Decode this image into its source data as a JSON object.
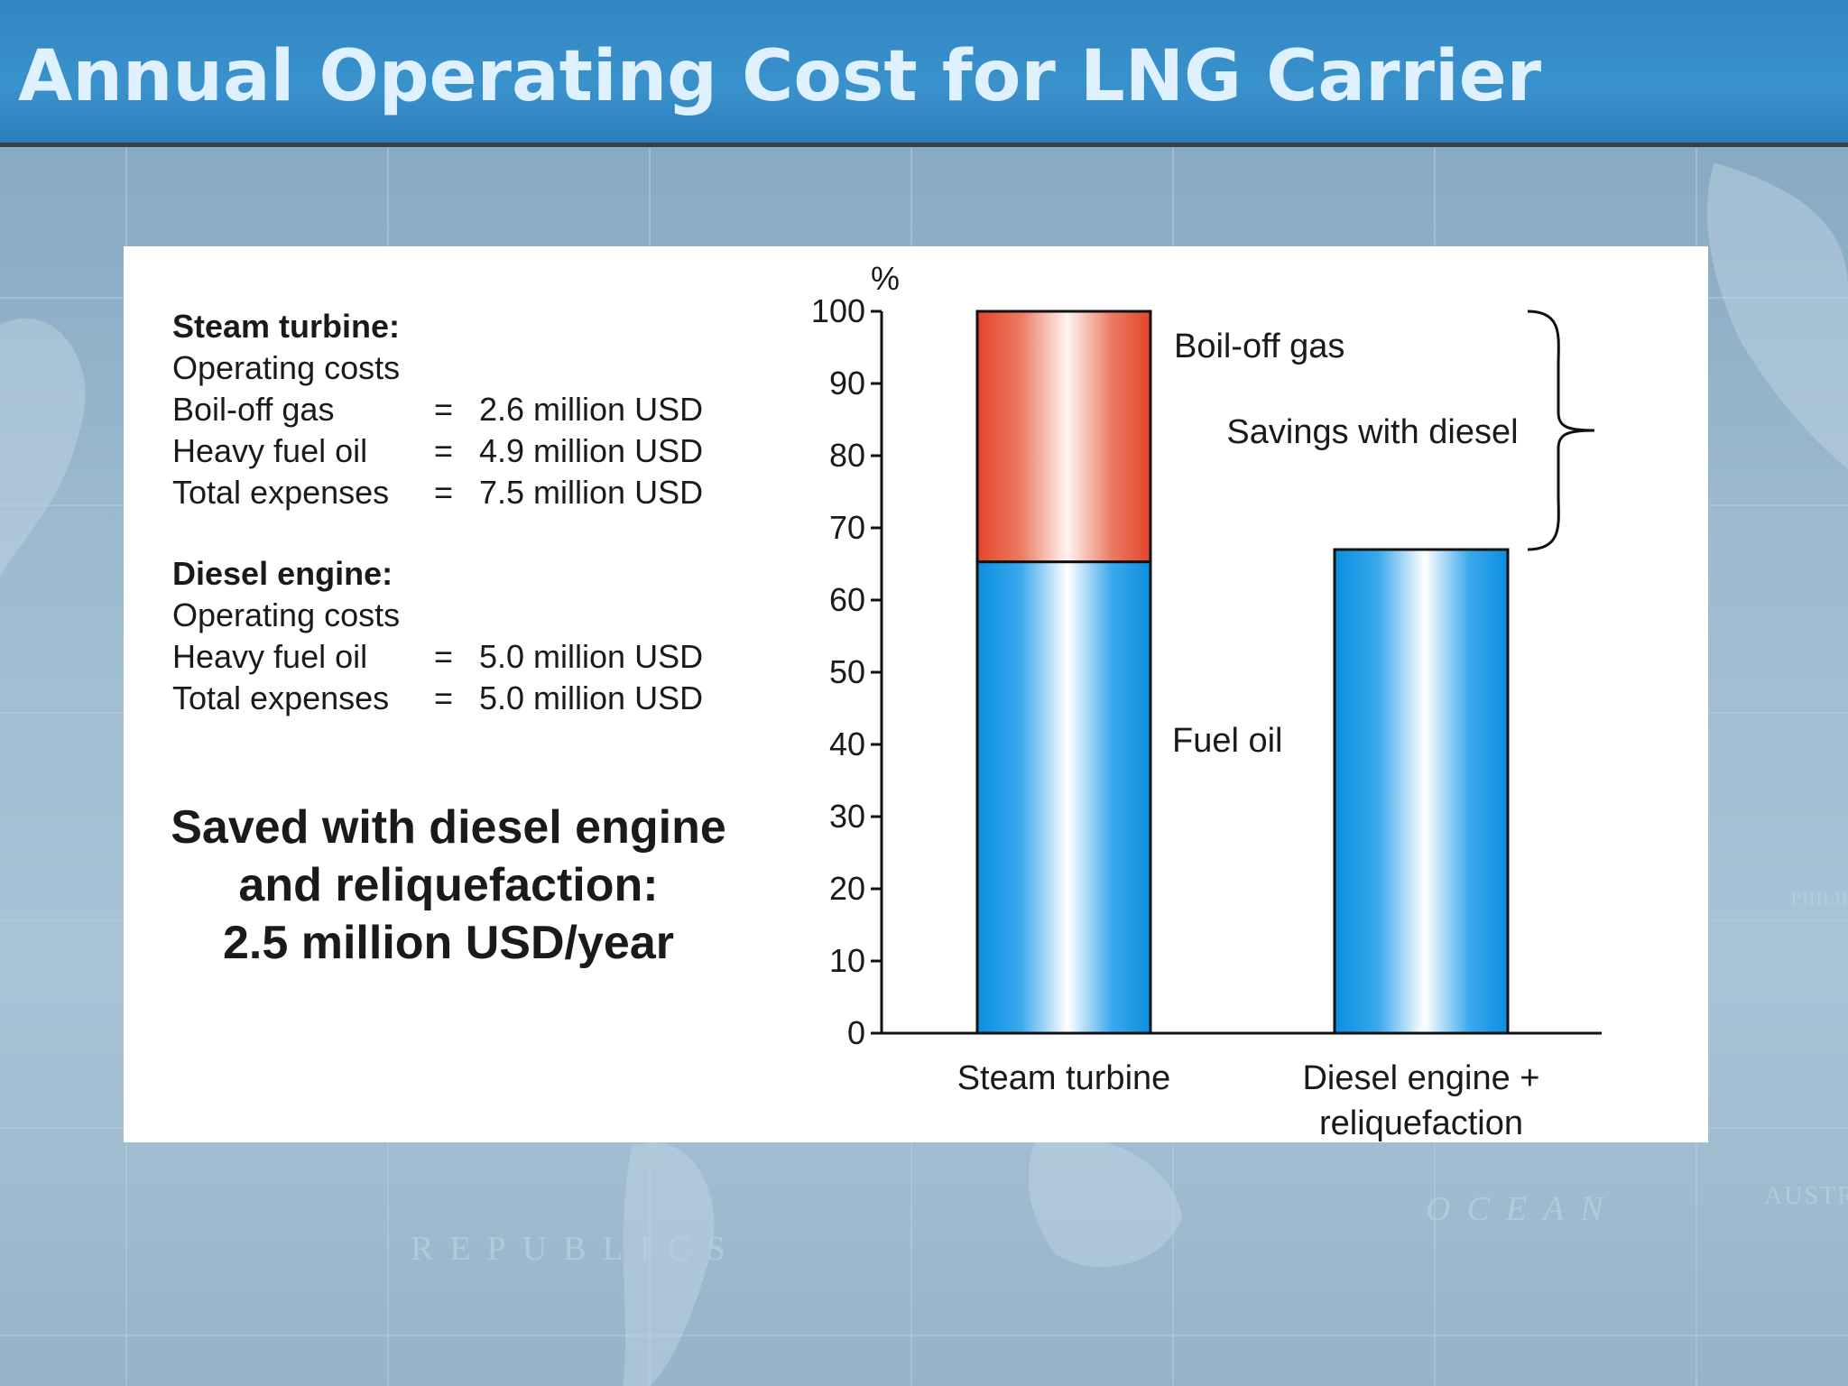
{
  "slide": {
    "title": "Annual Operating Cost for LNG Carrier",
    "map_words": [
      "REPUBLICS",
      "OCEAN",
      "AUSTR",
      "PHILIP"
    ]
  },
  "steam": {
    "heading": "Steam turbine:",
    "subheading": "Operating costs",
    "rows": [
      {
        "label": "Boil-off gas",
        "eq": "=",
        "value": "2.6 million USD"
      },
      {
        "label": "Heavy fuel oil",
        "eq": "=",
        "value": "4.9 million USD"
      },
      {
        "label": "Total expenses",
        "eq": "=",
        "value": "7.5 million USD"
      }
    ]
  },
  "diesel": {
    "heading": "Diesel engine:",
    "subheading": "Operating costs",
    "rows": [
      {
        "label": "Heavy fuel oil",
        "eq": "=",
        "value": "5.0 million USD"
      },
      {
        "label": "Total expenses",
        "eq": "=",
        "value": "5.0 million USD"
      }
    ]
  },
  "saved": {
    "line1": "Saved with diesel engine",
    "line2": "and reliquefaction:",
    "line3": "2.5 million USD/year"
  },
  "colors": {
    "fuel_oil": "#0a8fe0",
    "boil_off_gas": "#e2452b",
    "header": "#3a92cc",
    "title_text": "#dff1ff"
  },
  "chart_data": {
    "type": "bar",
    "stacked": true,
    "categories": [
      "Steam turbine",
      "Diesel engine + reliquefaction"
    ],
    "category_lines": [
      [
        "Steam turbine"
      ],
      [
        "Diesel engine +",
        "reliquefaction"
      ]
    ],
    "series": [
      {
        "name": "Fuel oil",
        "values": [
          65.3,
          67
        ]
      },
      {
        "name": "Boil-off gas",
        "values": [
          34.7,
          0
        ]
      }
    ],
    "ylabel": "%",
    "ylim": [
      0,
      100
    ],
    "yticks": [
      0,
      10,
      20,
      30,
      40,
      50,
      60,
      70,
      80,
      90,
      100
    ],
    "grid": false,
    "annotation": "Savings with diesel"
  }
}
